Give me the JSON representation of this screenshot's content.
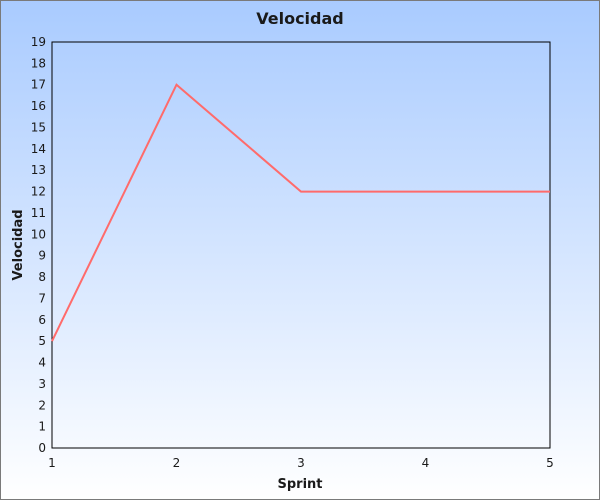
{
  "chart_data": {
    "type": "line",
    "title": "Velocidad",
    "xlabel": "Sprint",
    "ylabel": "Velocidad",
    "x": [
      1,
      2,
      3,
      4,
      5
    ],
    "series": [
      {
        "values": [
          5,
          17,
          12,
          12,
          12
        ],
        "color": "#ff6b6b"
      }
    ],
    "xlim": [
      1,
      5
    ],
    "ylim": [
      0,
      19
    ],
    "x_ticks": [
      "1",
      "2",
      "3",
      "4",
      "5"
    ],
    "y_ticks": [
      "0",
      "1",
      "2",
      "3",
      "4",
      "5",
      "6",
      "7",
      "8",
      "9",
      "10",
      "11",
      "12",
      "13",
      "14",
      "15",
      "16",
      "17",
      "18",
      "19"
    ],
    "grid": false,
    "legend": "none",
    "colors": {
      "background_top": "#a9cbff",
      "background_bottom": "#ffffff",
      "border": "#7a7a7a",
      "plot_border": "#000000",
      "text": "#1a1a1a"
    }
  }
}
